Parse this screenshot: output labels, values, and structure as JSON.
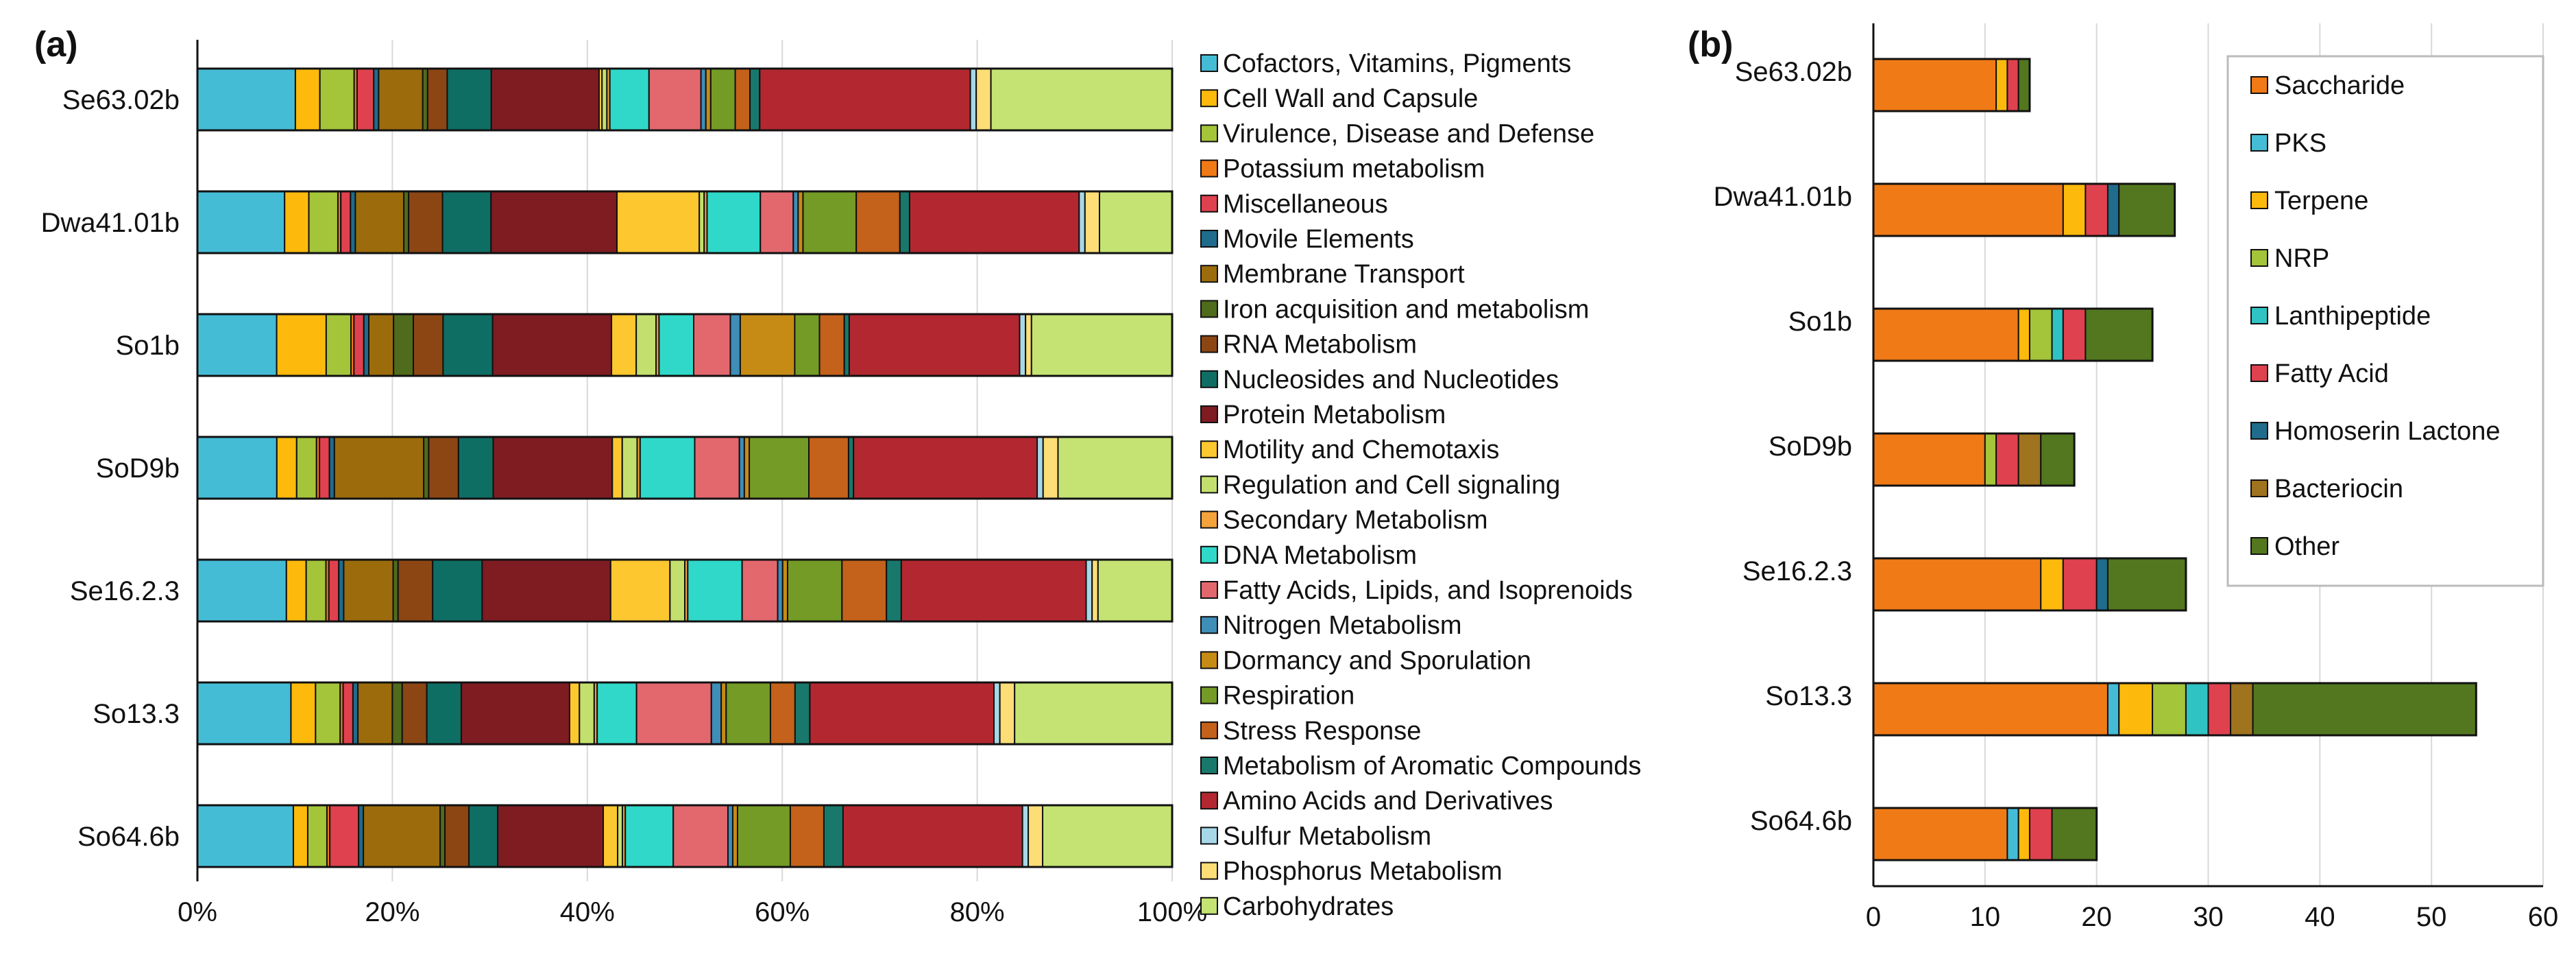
{
  "chart_data": [
    {
      "panel_label": "(a)",
      "type": "bar",
      "orientation": "horizontal",
      "stacking": "percent",
      "categories": [
        "Se63.02b",
        "Dwa41.01b",
        "So1b",
        "SoD9b",
        "Se16.2.3",
        "So13.3",
        "So64.6b"
      ],
      "x_ticks": [
        "0%",
        "20%",
        "40%",
        "60%",
        "80%",
        "100%"
      ],
      "xlim": [
        0,
        100
      ],
      "grid": true,
      "legend_position": "right",
      "series": [
        {
          "name": "Cofactors, Vitamins, Pigments",
          "color": "#45BCD6",
          "values": [
            10,
            9,
            8,
            8,
            9,
            9.5,
            10
          ]
        },
        {
          "name": "Cell Wall and Capsule",
          "color": "#FDBA0D",
          "values": [
            2.5,
            2.5,
            5,
            2,
            2,
            2.5,
            1.5
          ]
        },
        {
          "name": "Virulence, Disease and Defense",
          "color": "#A4C43A",
          "values": [
            3.5,
            3,
            2.5,
            2,
            2,
            2.5,
            2
          ]
        },
        {
          "name": "Potassium metabolism",
          "color": "#F07A16",
          "values": [
            0.3,
            0.3,
            0.3,
            0.3,
            0.3,
            0.3,
            0.3
          ]
        },
        {
          "name": "Miscellaneous",
          "color": "#E0414F",
          "values": [
            1.7,
            1,
            1,
            1,
            1,
            1,
            3
          ]
        },
        {
          "name": "Movile Elements",
          "color": "#1F6C8C",
          "values": [
            0.5,
            0.5,
            0.5,
            0.5,
            0.5,
            0.5,
            0.5
          ]
        },
        {
          "name": "Membrane Transport",
          "color": "#9C6C0C",
          "values": [
            4.5,
            5,
            2.5,
            9,
            5,
            3.5,
            8
          ]
        },
        {
          "name": "Iron acquisition and metabolism",
          "color": "#4F6B1C",
          "values": [
            0.5,
            0.5,
            2,
            0.5,
            0.5,
            1,
            0.5
          ]
        },
        {
          "name": "RNA Metabolism",
          "color": "#8C4614",
          "values": [
            2,
            3.5,
            3,
            3,
            3.5,
            2.5,
            2.5
          ]
        },
        {
          "name": "Nucleosides and Nucleotides",
          "color": "#0E6E64",
          "values": [
            4.5,
            5,
            5,
            3.5,
            5,
            3.5,
            3
          ]
        },
        {
          "name": "Protein Metabolism",
          "color": "#7E1C22",
          "values": [
            11,
            13,
            12,
            12,
            13,
            11,
            11
          ]
        },
        {
          "name": "Motility and Chemotaxis",
          "color": "#FDC72F",
          "values": [
            0.3,
            8.5,
            2.5,
            1,
            6,
            1,
            1.5
          ]
        },
        {
          "name": "Regulation and Cell signaling",
          "color": "#C3E06E",
          "values": [
            0.5,
            0.5,
            2,
            1.5,
            1.5,
            1.5,
            0.5
          ]
        },
        {
          "name": "Secondary Metabolism",
          "color": "#F4A23B",
          "values": [
            0.3,
            0.3,
            0.3,
            0.3,
            0.3,
            0.3,
            0.3
          ]
        },
        {
          "name": "DNA Metabolism",
          "color": "#2FD8C8",
          "values": [
            4,
            5.5,
            3.5,
            5.5,
            5.5,
            4,
            5
          ]
        },
        {
          "name": "Fatty Acids, Lipids, and Isoprenoids",
          "color": "#E2686E",
          "values": [
            5.3,
            3.4,
            3.7,
            4.5,
            3.6,
            7.6,
            5.7
          ]
        },
        {
          "name": "Nitrogen Metabolism",
          "color": "#3E8EB8",
          "values": [
            0.5,
            0.5,
            1,
            0.5,
            0.5,
            1,
            0.5
          ]
        },
        {
          "name": "Dormancy and Sporulation",
          "color": "#C68B15",
          "values": [
            0.5,
            0.5,
            5.5,
            0.5,
            0.5,
            0.5,
            0.5
          ]
        },
        {
          "name": "Respiration",
          "color": "#749B25",
          "values": [
            2.5,
            5.5,
            2.5,
            6,
            5.5,
            4.5,
            5.5
          ]
        },
        {
          "name": "Stress Response",
          "color": "#C4611A",
          "values": [
            1.5,
            4.5,
            2.5,
            4,
            4.5,
            2.5,
            3.5
          ]
        },
        {
          "name": "Metabolism of Aromatic Compounds",
          "color": "#19786C",
          "values": [
            1,
            1,
            0.5,
            0.5,
            1.5,
            1.5,
            2
          ]
        },
        {
          "name": "Amino Acids and Derivatives",
          "color": "#B32830",
          "values": [
            21.5,
            17.5,
            17.2,
            18.5,
            18.7,
            18.7,
            18.7
          ]
        },
        {
          "name": "Sulfur Metabolism",
          "color": "#A6D8E8",
          "values": [
            0.6,
            0.6,
            0.6,
            0.6,
            0.6,
            0.6,
            0.6
          ]
        },
        {
          "name": "Phosphorus Metabolism",
          "color": "#FCDD76",
          "values": [
            1.5,
            1.5,
            0.6,
            1.5,
            0.6,
            1.5,
            1.5
          ]
        },
        {
          "name": "Carbohydrates",
          "color": "#C4E373",
          "values": [
            18.5,
            7.5,
            14.2,
            11.5,
            7.5,
            16,
            13.5
          ]
        }
      ]
    },
    {
      "panel_label": "(b)",
      "type": "bar",
      "orientation": "horizontal",
      "stacking": "stacked",
      "categories": [
        "Se63.02b",
        "Dwa41.01b",
        "So1b",
        "SoD9b",
        "Se16.2.3",
        "So13.3",
        "So64.6b"
      ],
      "x_ticks": [
        "0",
        "10",
        "20",
        "30",
        "40",
        "50",
        "60"
      ],
      "xlim": [
        0,
        60
      ],
      "grid": true,
      "legend_position": "top-right",
      "series": [
        {
          "name": "Saccharide",
          "color": "#F07A16",
          "values": [
            11,
            17,
            13,
            10,
            15,
            21,
            12
          ]
        },
        {
          "name": "PKS",
          "color": "#45BCD6",
          "values": [
            0,
            0,
            0,
            0,
            0,
            1,
            1
          ]
        },
        {
          "name": "Terpene",
          "color": "#FDBA0D",
          "values": [
            1,
            2,
            1,
            0,
            2,
            3,
            1
          ]
        },
        {
          "name": "NRP",
          "color": "#A4C43A",
          "values": [
            0,
            0,
            2,
            1,
            0,
            3,
            0
          ]
        },
        {
          "name": "Lanthipeptide",
          "color": "#2FC3C3",
          "values": [
            0,
            0,
            1,
            0,
            0,
            2,
            0
          ]
        },
        {
          "name": "Fatty Acid",
          "color": "#E0414F",
          "values": [
            1,
            2,
            2,
            2,
            3,
            2,
            2
          ]
        },
        {
          "name": "Homoserin Lactone",
          "color": "#1F6C8C",
          "values": [
            0,
            1,
            0,
            0,
            1,
            0,
            0
          ]
        },
        {
          "name": "Bacteriocin",
          "color": "#A0731E",
          "values": [
            0,
            0,
            0,
            2,
            0,
            2,
            0
          ]
        },
        {
          "name": "Other",
          "color": "#52771F",
          "values": [
            1,
            5,
            6,
            3,
            7,
            20,
            4
          ]
        }
      ]
    }
  ]
}
